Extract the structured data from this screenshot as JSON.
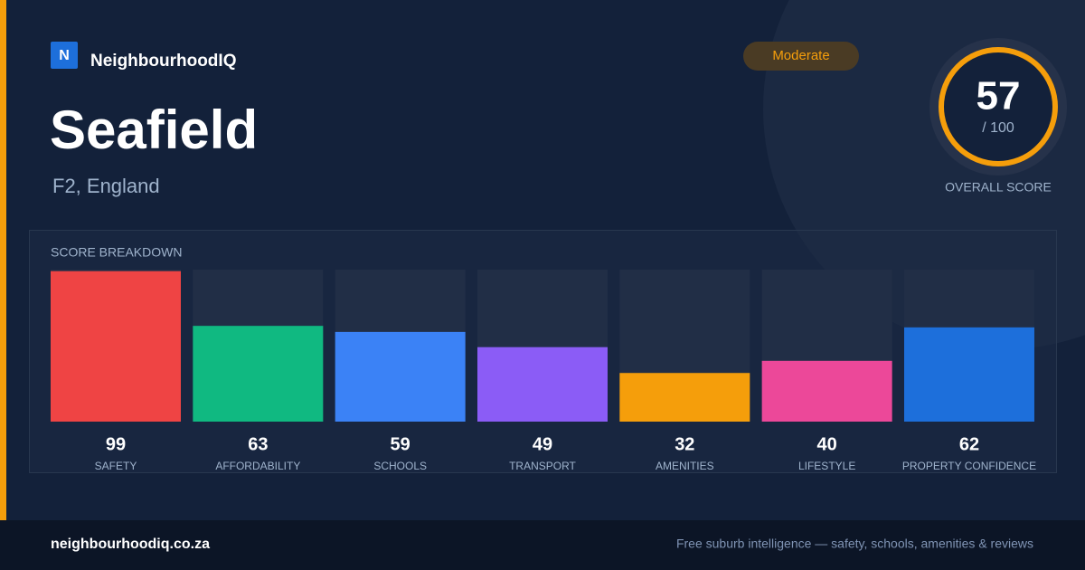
{
  "header": {
    "logo_letter": "N",
    "brand": "NeighbourhoodIQ",
    "title": "Seafield",
    "location": "F2, England",
    "badge": "Moderate"
  },
  "score": {
    "value": 57,
    "max_label": "/ 100",
    "label": "OVERALL SCORE"
  },
  "chart_data": {
    "type": "bar",
    "title": "SCORE BREAKDOWN",
    "categories": [
      "SAFETY",
      "AFFORDABILITY",
      "SCHOOLS",
      "TRANSPORT",
      "AMENITIES",
      "LIFESTYLE",
      "PROPERTY CONFIDENCE"
    ],
    "values": [
      99,
      63,
      59,
      49,
      32,
      40,
      62
    ],
    "colors": [
      "#ef4444",
      "#10b981",
      "#3b82f6",
      "#8b5cf6",
      "#f59e0b",
      "#ec4899",
      "#1d6fdb"
    ],
    "ylim": [
      0,
      100
    ]
  },
  "footer": {
    "url": "neighbourhoodiq.co.za",
    "tagline": "Free suburb intelligence — safety, schools, amenities & reviews"
  }
}
